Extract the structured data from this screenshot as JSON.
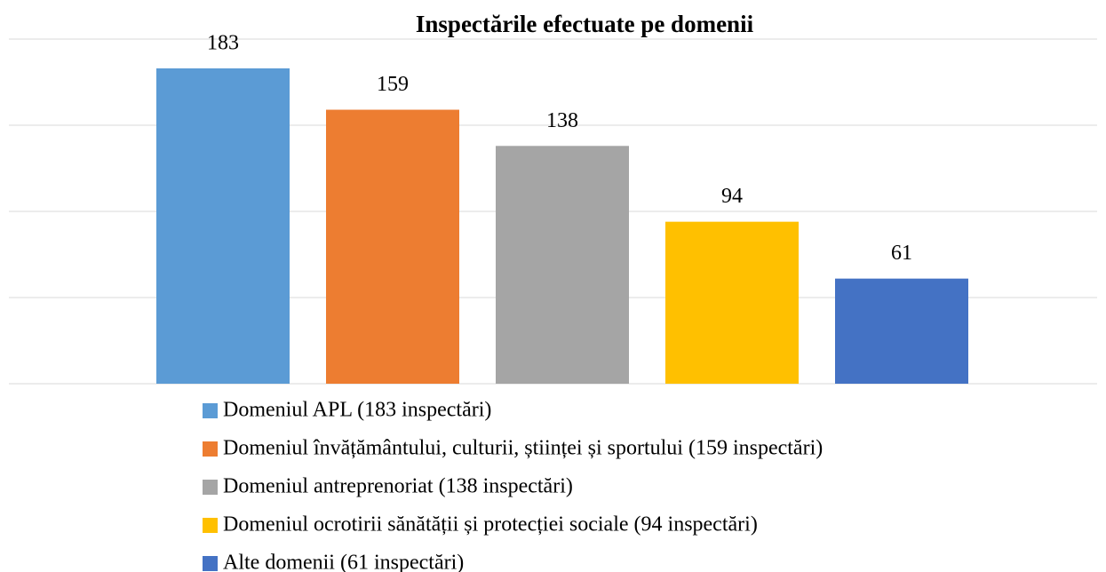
{
  "chart_data": {
    "type": "bar",
    "title": "Inspectările efectuate pe domenii",
    "series": [
      {
        "name": "Domeniul APL (183 inspectări)",
        "color": "#5b9bd5",
        "values": [
          183
        ]
      },
      {
        "name": "Domeniul învățământului, culturii, științei și sportului (159 inspectări)",
        "color": "#ed7d31",
        "values": [
          159
        ]
      },
      {
        "name": "Domeniul antreprenoriat (138 inspectări)",
        "color": "#a5a5a5",
        "values": [
          138
        ]
      },
      {
        "name": "Domeniul ocrotirii sănătății și protecției sociale (94 inspectări)",
        "color": "#ffc000",
        "values": [
          94
        ]
      },
      {
        "name": "Alte domenii (61 inspectări)",
        "color": "#4472c4",
        "values": [
          61
        ]
      }
    ],
    "ylim": [
      0,
      200
    ],
    "yticks": [
      0,
      50,
      100,
      150,
      200
    ],
    "grid": true,
    "legend": "bottom"
  }
}
